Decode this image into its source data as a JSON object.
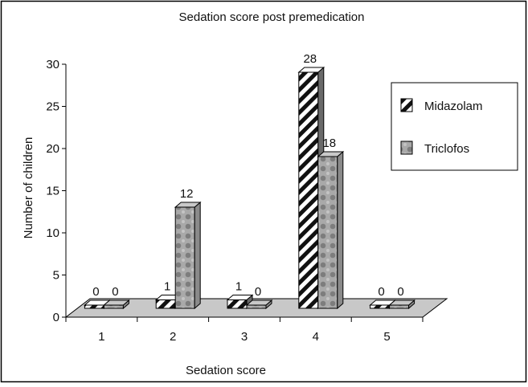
{
  "chart_data": {
    "type": "bar",
    "title": "Sedation score post premedication",
    "xlabel": "Sedation score",
    "ylabel": "Number of children",
    "categories": [
      "1",
      "2",
      "3",
      "4",
      "5"
    ],
    "yticks": [
      "0",
      "5",
      "10",
      "15",
      "20",
      "25",
      "30"
    ],
    "ylim": [
      0,
      30
    ],
    "grid": false,
    "legend_position": "right",
    "series": [
      {
        "name": "Midazolam",
        "values": [
          0,
          1,
          1,
          28,
          0
        ],
        "labels": [
          "0",
          "1",
          "1",
          "28",
          "0"
        ],
        "fill": "diagonal-stripes"
      },
      {
        "name": "Triclofos",
        "values": [
          0,
          12,
          0,
          18,
          0
        ],
        "labels": [
          "0",
          "12",
          "0",
          "18",
          "0"
        ],
        "fill": "gray-dotted"
      }
    ]
  },
  "colors": {
    "frame": "#000000",
    "stripe_dark": "#111111",
    "triclofos_base": "#a9a9a9",
    "triclofos_dot": "#7d7d7d",
    "floor": "#c8c8c8"
  }
}
